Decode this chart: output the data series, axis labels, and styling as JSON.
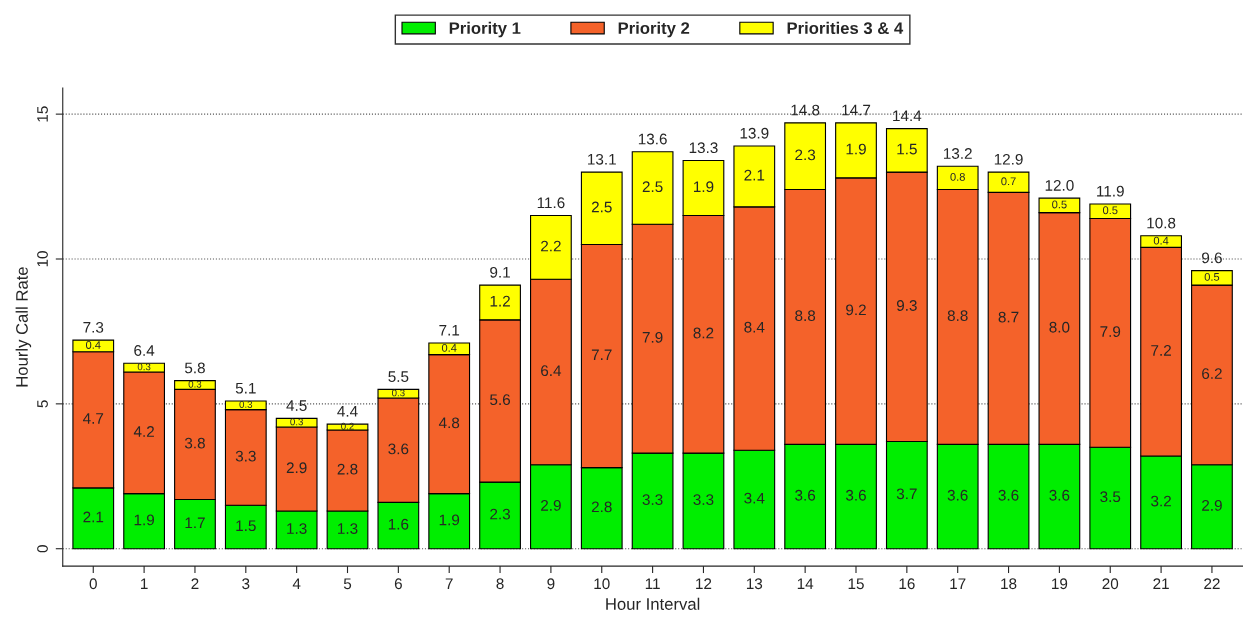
{
  "chart_data": {
    "type": "bar",
    "stacked": true,
    "xlabel": "Hour Interval",
    "ylabel": "Hourly Call Rate",
    "categories": [
      "0",
      "1",
      "2",
      "3",
      "4",
      "5",
      "6",
      "7",
      "8",
      "9",
      "10",
      "11",
      "12",
      "13",
      "14",
      "15",
      "16",
      "17",
      "18",
      "19",
      "20",
      "21",
      "22"
    ],
    "series": [
      {
        "name": "Priority 1",
        "color": "#00ee00",
        "values": [
          2.1,
          1.9,
          1.7,
          1.5,
          1.3,
          1.3,
          1.6,
          1.9,
          2.3,
          2.9,
          2.8,
          3.3,
          3.3,
          3.4,
          3.6,
          3.6,
          3.7,
          3.6,
          3.6,
          3.6,
          3.5,
          3.2,
          2.9
        ],
        "value_labels": [
          "2.1",
          "1.9",
          "1.7",
          "1.5",
          "1.3",
          "1.3",
          "1.6",
          "1.9",
          "2.3",
          "2.9",
          "2.8",
          "3.3",
          "3.3",
          "3.4",
          "3.6",
          "3.6",
          "3.7",
          "3.6",
          "3.6",
          "3.6",
          "3.5",
          "3.2",
          "2.9"
        ]
      },
      {
        "name": "Priority 2",
        "color": "#f4622a",
        "values": [
          4.7,
          4.2,
          3.8,
          3.3,
          2.9,
          2.8,
          3.6,
          4.8,
          5.6,
          6.4,
          7.7,
          7.9,
          8.2,
          8.4,
          8.8,
          9.2,
          9.3,
          8.8,
          8.7,
          8.0,
          7.9,
          7.2,
          6.2
        ],
        "value_labels": [
          "4.7",
          "4.2",
          "3.8",
          "3.3",
          "2.9",
          "2.8",
          "3.6",
          "4.8",
          "5.6",
          "6.4",
          "7.7",
          "7.9",
          "8.2",
          "8.4",
          "8.8",
          "9.2",
          "9.3",
          "8.8",
          "8.7",
          "8.0",
          "7.9",
          "7.2",
          "6.2"
        ]
      },
      {
        "name": "Priorities 3 & 4",
        "color": "#ffff00",
        "values": [
          0.4,
          0.3,
          0.3,
          0.3,
          0.3,
          0.2,
          0.3,
          0.4,
          1.2,
          2.2,
          2.5,
          2.5,
          1.9,
          2.1,
          2.3,
          1.9,
          1.5,
          0.8,
          0.7,
          0.5,
          0.5,
          0.4,
          0.5
        ],
        "value_labels": [
          "0.4",
          "0.3",
          "0.3",
          "0.3",
          "0.3",
          "0.2",
          "0.3",
          "0.4",
          "1.2",
          "2.2",
          "2.5",
          "2.5",
          "1.9",
          "2.1",
          "2.3",
          "1.9",
          "1.5",
          "0.8",
          "0.7",
          "0.5",
          "0.5",
          "0.4",
          "0.5"
        ]
      }
    ],
    "totals": [
      "7.3",
      "6.4",
      "5.8",
      "5.1",
      "4.5",
      "4.4",
      "5.5",
      "7.1",
      "9.1",
      "11.6",
      "13.1",
      "13.6",
      "13.3",
      "13.9",
      "14.8",
      "14.7",
      "14.4",
      "13.2",
      "12.9",
      "12.0",
      "11.9",
      "10.8",
      "9.6"
    ],
    "ylim": [
      -0.6,
      15.9
    ],
    "yticks": [
      0,
      5,
      10,
      15
    ],
    "grid": "y",
    "legend": "top"
  }
}
